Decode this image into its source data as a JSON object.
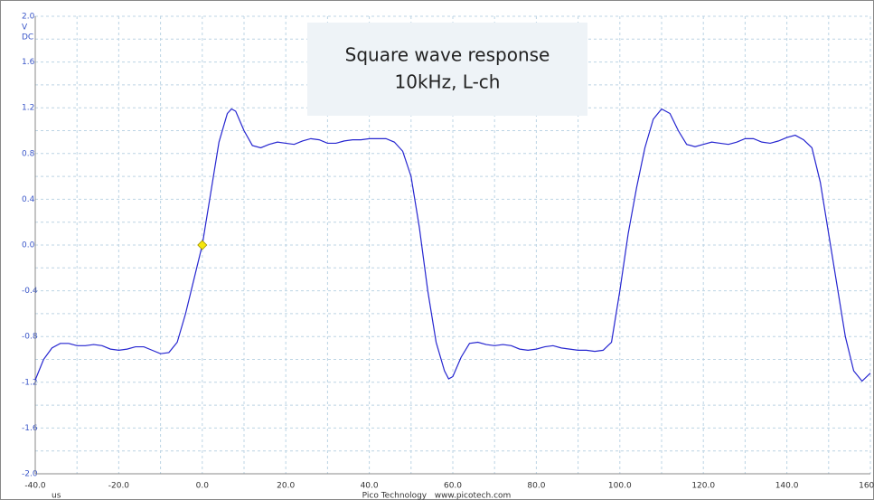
{
  "chart_data": {
    "type": "line",
    "title": "Square wave response",
    "subtitle": "10kHz, L-ch",
    "y_unit": "V",
    "coupling": "DC",
    "x_unit": "us",
    "footer": "Pico Technology   www.picotech.com",
    "xlim": [
      -40,
      160
    ],
    "ylim": [
      -2,
      2
    ],
    "xticks": [
      {
        "value": -40,
        "label": "-40.0"
      },
      {
        "value": -20,
        "label": "-20.0"
      },
      {
        "value": 0,
        "label": "0.0"
      },
      {
        "value": 20,
        "label": "20.0"
      },
      {
        "value": 40,
        "label": "40.0"
      },
      {
        "value": 60,
        "label": "60.0"
      },
      {
        "value": 80,
        "label": "80.0"
      },
      {
        "value": 100,
        "label": "100.0"
      },
      {
        "value": 120,
        "label": "120.0"
      },
      {
        "value": 140,
        "label": "140.0"
      },
      {
        "value": 160,
        "label": "160.0"
      }
    ],
    "yticks": [
      {
        "value": -2,
        "label": "-2.0"
      },
      {
        "value": -1.6,
        "label": "-1.6"
      },
      {
        "value": -1.2,
        "label": "-1.2"
      },
      {
        "value": -0.8,
        "label": "-0.8"
      },
      {
        "value": -0.4,
        "label": "-0.4"
      },
      {
        "value": 0,
        "label": "0.0"
      },
      {
        "value": 0.4,
        "label": "0.4"
      },
      {
        "value": 0.8,
        "label": "0.8"
      },
      {
        "value": 1.2,
        "label": "1.2"
      },
      {
        "value": 1.6,
        "label": "1.6"
      },
      {
        "value": 2,
        "label": "2.0"
      }
    ],
    "x_minor_grid": [
      -30,
      -10,
      10,
      30,
      50,
      70,
      90,
      110,
      130,
      150
    ],
    "y_minor_grid": [
      -1.8,
      -1.4,
      -1,
      -0.6,
      -0.2,
      0.2,
      0.6,
      1,
      1.4,
      1.8
    ],
    "grid": true,
    "trigger": {
      "x": 0,
      "y": 0,
      "color": "#f5e60a"
    },
    "x": [
      -40,
      -38,
      -36,
      -34,
      -32,
      -30,
      -28,
      -26,
      -24,
      -22,
      -20,
      -18,
      -16,
      -14,
      -12,
      -10,
      -8,
      -6,
      -4,
      -2,
      0,
      2,
      4,
      6,
      7,
      8,
      10,
      12,
      14,
      16,
      18,
      20,
      22,
      24,
      26,
      28,
      30,
      32,
      34,
      36,
      38,
      40,
      42,
      44,
      46,
      48,
      50,
      52,
      54,
      56,
      58,
      59,
      60,
      62,
      64,
      66,
      68,
      70,
      72,
      74,
      76,
      78,
      80,
      82,
      84,
      86,
      88,
      90,
      92,
      94,
      96,
      98,
      100,
      102,
      104,
      106,
      108,
      110,
      112,
      114,
      116,
      118,
      120,
      122,
      124,
      126,
      128,
      130,
      132,
      134,
      136,
      138,
      140,
      142,
      144,
      146,
      148,
      150,
      152,
      154,
      156,
      158,
      160
    ],
    "series": [
      {
        "name": "L-ch",
        "color": "#2626d0",
        "values": [
          -1.18,
          -1.0,
          -0.9,
          -0.86,
          -0.86,
          -0.88,
          -0.88,
          -0.87,
          -0.88,
          -0.91,
          -0.92,
          -0.91,
          -0.89,
          -0.89,
          -0.92,
          -0.95,
          -0.94,
          -0.85,
          -0.6,
          -0.3,
          0,
          0.45,
          0.9,
          1.15,
          1.19,
          1.17,
          1.0,
          0.87,
          0.85,
          0.88,
          0.9,
          0.89,
          0.88,
          0.91,
          0.93,
          0.92,
          0.89,
          0.89,
          0.91,
          0.92,
          0.92,
          0.93,
          0.93,
          0.93,
          0.9,
          0.82,
          0.6,
          0.15,
          -0.4,
          -0.85,
          -1.1,
          -1.17,
          -1.15,
          -0.98,
          -0.86,
          -0.85,
          -0.87,
          -0.88,
          -0.87,
          -0.88,
          -0.91,
          -0.92,
          -0.91,
          -0.89,
          -0.88,
          -0.9,
          -0.91,
          -0.92,
          -0.92,
          -0.93,
          -0.92,
          -0.85,
          -0.4,
          0.1,
          0.5,
          0.85,
          1.1,
          1.19,
          1.15,
          1.0,
          0.88,
          0.86,
          0.88,
          0.9,
          0.89,
          0.88,
          0.9,
          0.93,
          0.93,
          0.9,
          0.89,
          0.91,
          0.94,
          0.96,
          0.92,
          0.85,
          0.55,
          0.1,
          -0.35,
          -0.8,
          -1.1,
          -1.19,
          -1.12
        ]
      }
    ]
  }
}
